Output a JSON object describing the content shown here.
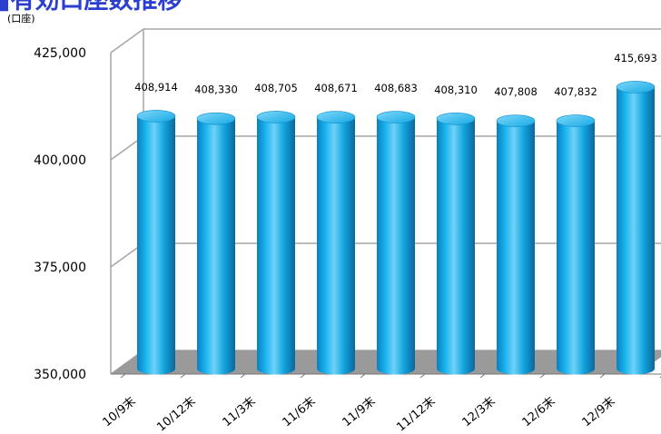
{
  "chart_data": {
    "type": "bar",
    "title": "■有効口座数推移",
    "unit_label": "(口座)",
    "categories": [
      "10/9末",
      "10/12末",
      "11/3末",
      "11/6末",
      "11/9末",
      "11/12末",
      "12/3末",
      "12/6末",
      "12/9末"
    ],
    "values": [
      408914,
      408330,
      408705,
      408671,
      408683,
      408310,
      407808,
      407832,
      415693
    ],
    "value_labels": [
      "408,914",
      "408,330",
      "408,705",
      "408,671",
      "408,683",
      "408,310",
      "407,808",
      "407,832",
      "415,693"
    ],
    "ylim": [
      350000,
      425000
    ],
    "yticks": [
      350000,
      375000,
      400000,
      425000
    ],
    "ytick_labels": [
      "350,000",
      "375,000",
      "400,000",
      "425,000"
    ],
    "grid": true,
    "colors": {
      "bar": "#14a6e0",
      "bar_dark": "#0b6fa3",
      "bar_light": "#8fdcfb",
      "floor": "#9a9a9a",
      "grid": "#a6a6a6",
      "title": "#2a3fd0"
    }
  }
}
